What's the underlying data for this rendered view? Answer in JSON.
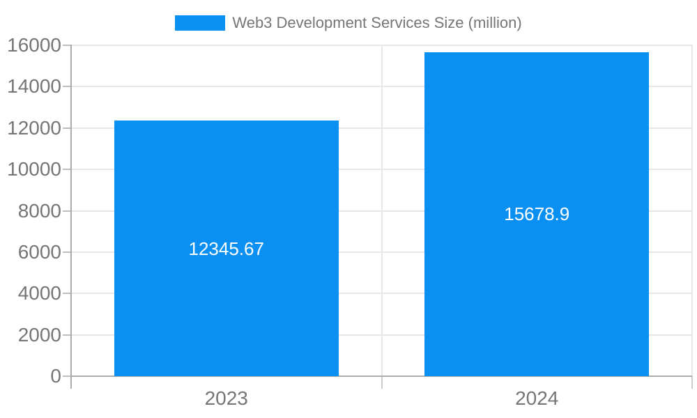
{
  "colors": {
    "bar": "#0990f2",
    "axis_line": "#ababab",
    "grid_line": "#e7e7e7",
    "tick_mark": "#bdbdbd",
    "bottom_tick_mark": "#cccccc",
    "tick_label_text": "#757575",
    "legend_text": "#757575",
    "value_label_text": "#ffffff"
  },
  "legend": {
    "label": "Web3 Development Services Size (million)",
    "position": "top"
  },
  "chart_data": {
    "type": "bar",
    "title": "Web3 Development Services Size (million)",
    "categories": [
      "2023",
      "2024"
    ],
    "series": [
      {
        "name": "Web3 Development Services Size (million)",
        "values": [
          12345.67,
          15678.9
        ],
        "data_labels": [
          "12345.67",
          "15678.9"
        ],
        "color": "#0990f2"
      }
    ],
    "xlabel": "",
    "ylabel": "",
    "ylim": [
      0,
      16000
    ],
    "ytick_step": 2000,
    "yticks": [
      0,
      2000,
      4000,
      6000,
      8000,
      10000,
      12000,
      14000,
      16000
    ],
    "grid": true,
    "legend_position": "top"
  }
}
